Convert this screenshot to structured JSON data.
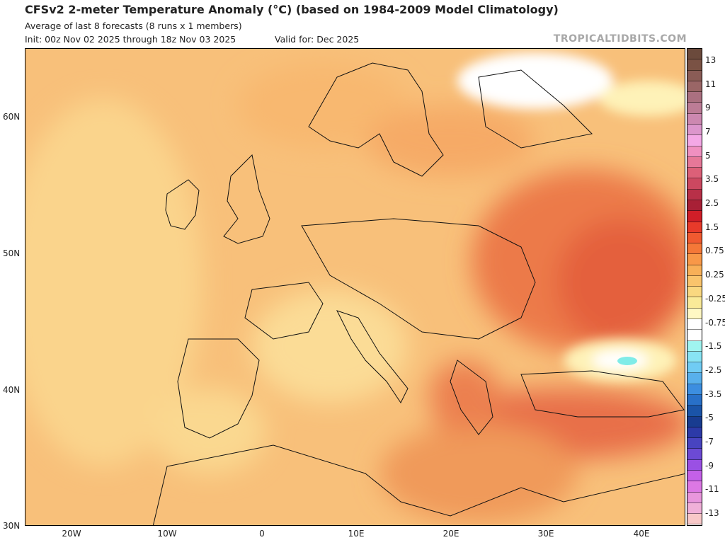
{
  "header": {
    "title": "CFSv2 2-meter Temperature Anomaly (°C) (based on 1984-2009 Model Climatology)",
    "subtitle": "Average of last 8 forecasts (8 runs x 1 members)",
    "init": "Init: 00z Nov 02 2025 through 18z Nov 03 2025",
    "valid": "Valid for: Dec 2025",
    "brand": "TROPICALTIDBITS.COM"
  },
  "map": {
    "lat_labels": [
      "60N",
      "50N",
      "40N",
      "30N"
    ],
    "lon_labels": [
      "20W",
      "10W",
      "0",
      "10E",
      "20E",
      "30E",
      "40E"
    ]
  },
  "colorbar": {
    "labels": [
      "13",
      "11",
      "9",
      "7",
      "5",
      "3.5",
      "2.5",
      "1.5",
      "0.75",
      "0.25",
      "-0.25",
      "-0.75",
      "-1.5",
      "-2.5",
      "-3.5",
      "-5",
      "-7",
      "-9",
      "-11",
      "-13"
    ],
    "colors": [
      "#6b4a3c",
      "#7a5244",
      "#8a5c56",
      "#9a6666",
      "#aa7080",
      "#bc7c96",
      "#cc88b0",
      "#dc96cc",
      "#f4a8e6",
      "#f090c0",
      "#e67898",
      "#dc6078",
      "#cc4860",
      "#b83048",
      "#a82036",
      "#d01e28",
      "#e83a2a",
      "#f05a30",
      "#f47838",
      "#f89848",
      "#f8b058",
      "#fac46c",
      "#fad880",
      "#faea98",
      "#fff8c4",
      "#ffffff",
      "#ffffff",
      "#a0f4f0",
      "#88e4f4",
      "#70ccf4",
      "#58b0ec",
      "#3c8ee0",
      "#2870c8",
      "#1a54a8",
      "#183c90",
      "#2c3aa8",
      "#4844c0",
      "#6c4ad4",
      "#9a50e4",
      "#c460e8",
      "#dc78e4",
      "#e896dc",
      "#f0b0d8",
      "#f8c8c8"
    ],
    "accent_warm": "#f4a24f",
    "accent_hot": "#e45a3a"
  }
}
